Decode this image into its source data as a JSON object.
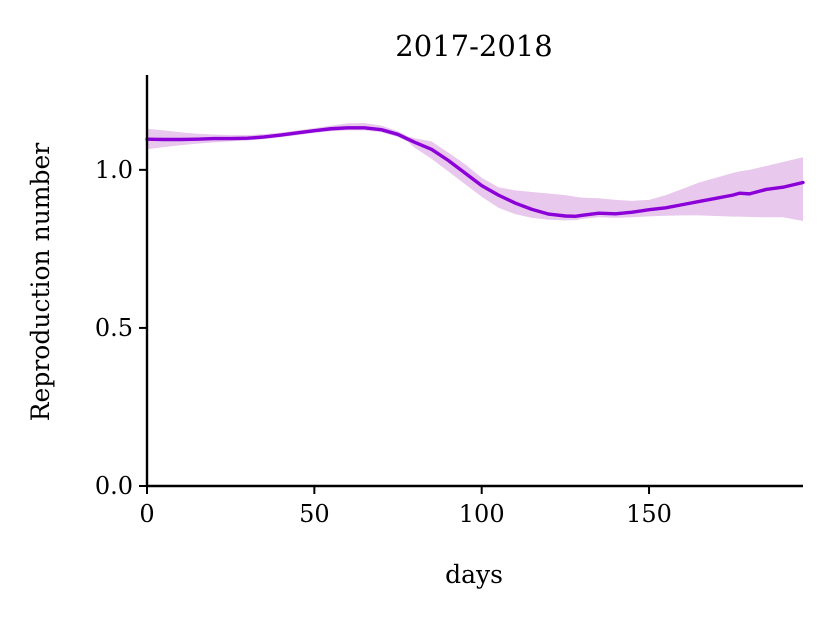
{
  "chart_data": {
    "type": "line",
    "title": "2017-2018",
    "xlabel": "days",
    "ylabel": "Reproduction number",
    "xlim": [
      0,
      196
    ],
    "ylim": [
      0,
      1.3
    ],
    "xticks": [
      0,
      50,
      100,
      150
    ],
    "xtick_labels": [
      "0",
      "50",
      "100",
      "150"
    ],
    "yticks": [
      0.0,
      0.5,
      1.0
    ],
    "ytick_labels": [
      "0.0",
      "0.5",
      "1.0"
    ],
    "grid": false,
    "legend": "none",
    "line_color": "#8b00d8",
    "band_color": "#e8c8ec",
    "series": [
      {
        "x": [
          0,
          5,
          10,
          15,
          20,
          25,
          30,
          35,
          40,
          45,
          50,
          55,
          60,
          65,
          70,
          75,
          78,
          80,
          85,
          90,
          95,
          100,
          105,
          110,
          115,
          120,
          125,
          128,
          130,
          135,
          140,
          145,
          150,
          155,
          160,
          165,
          170,
          175,
          177,
          180,
          185,
          190,
          196
        ],
        "values": [
          1.097,
          1.096,
          1.096,
          1.097,
          1.099,
          1.099,
          1.1,
          1.104,
          1.11,
          1.117,
          1.124,
          1.13,
          1.133,
          1.133,
          1.127,
          1.112,
          1.097,
          1.087,
          1.065,
          1.03,
          0.99,
          0.95,
          0.92,
          0.895,
          0.875,
          0.86,
          0.854,
          0.853,
          0.856,
          0.863,
          0.861,
          0.866,
          0.874,
          0.88,
          0.89,
          0.9,
          0.91,
          0.92,
          0.926,
          0.924,
          0.938,
          0.945,
          0.96
        ],
        "lower": [
          1.065,
          1.072,
          1.078,
          1.083,
          1.087,
          1.09,
          1.093,
          1.097,
          1.103,
          1.11,
          1.117,
          1.122,
          1.125,
          1.125,
          1.119,
          1.104,
          1.088,
          1.07,
          1.035,
          0.995,
          0.955,
          0.915,
          0.88,
          0.86,
          0.848,
          0.842,
          0.84,
          0.841,
          0.845,
          0.85,
          0.848,
          0.85,
          0.853,
          0.855,
          0.856,
          0.856,
          0.854,
          0.852,
          0.852,
          0.851,
          0.85,
          0.85,
          0.838
        ],
        "upper": [
          1.13,
          1.125,
          1.119,
          1.114,
          1.112,
          1.11,
          1.11,
          1.113,
          1.118,
          1.125,
          1.132,
          1.14,
          1.147,
          1.148,
          1.14,
          1.122,
          1.105,
          1.1,
          1.09,
          1.055,
          1.018,
          0.975,
          0.945,
          0.935,
          0.93,
          0.925,
          0.92,
          0.915,
          0.912,
          0.91,
          0.905,
          0.902,
          0.905,
          0.92,
          0.94,
          0.96,
          0.975,
          0.99,
          0.995,
          1.0,
          1.012,
          1.025,
          1.04
        ]
      }
    ]
  }
}
